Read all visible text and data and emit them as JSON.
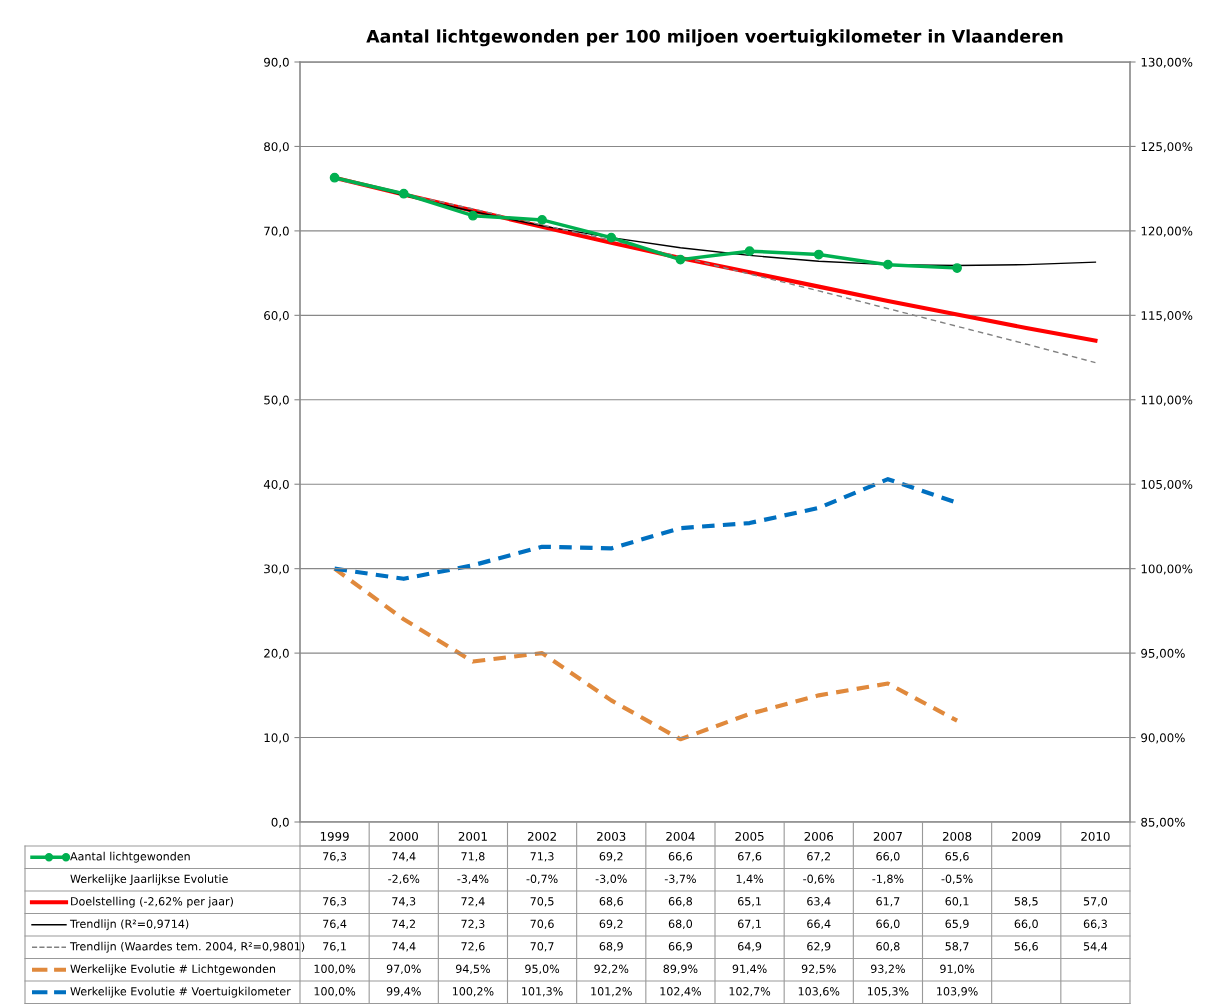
{
  "chart_data": {
    "type": "line",
    "title": "Aantal lichtgewonden per 100 miljoen voertuigkilometer in Vlaanderen",
    "categories": [
      "1999",
      "2000",
      "2001",
      "2002",
      "2003",
      "2004",
      "2005",
      "2006",
      "2007",
      "2008",
      "2009",
      "2010"
    ],
    "series": [
      {
        "name": "Aantal lichtgewonden",
        "color": "#00b050",
        "marker": "circle",
        "line_style": "solid",
        "values": [
          76.3,
          74.4,
          71.8,
          71.3,
          69.2,
          66.6,
          67.6,
          67.2,
          66.0,
          65.6,
          null,
          null
        ],
        "value_labels": [
          "76,3",
          "74,4",
          "71,8",
          "71,3",
          "69,2",
          "66,6",
          "67,6",
          "67,2",
          "66,0",
          "65,6",
          null,
          null
        ]
      },
      {
        "name": "Werkelijke Jaarlijkse Evolutie",
        "values": [
          null,
          null,
          null,
          null,
          null,
          null,
          null,
          null,
          null,
          null,
          null,
          null
        ],
        "value_labels": [
          null,
          "-2,6%",
          "-3,4%",
          "-0,7%",
          "-3,0%",
          "-3,7%",
          "1,4%",
          "-0,6%",
          "-1,8%",
          "-0,5%",
          null,
          null
        ]
      },
      {
        "name": "Doelstelling (-2,62% per jaar)",
        "color": "#ff0000",
        "line_style": "solid",
        "values": [
          76.3,
          74.3,
          72.4,
          70.5,
          68.6,
          66.8,
          65.1,
          63.4,
          61.7,
          60.1,
          58.5,
          57.0
        ],
        "value_labels": [
          "76,3",
          "74,3",
          "72,4",
          "70,5",
          "68,6",
          "66,8",
          "65,1",
          "63,4",
          "61,7",
          "60,1",
          "58,5",
          "57,0"
        ]
      },
      {
        "name": "Trendlijn (R²=0,9714)",
        "color": "#000000",
        "line_style": "solid",
        "values": [
          76.4,
          74.2,
          72.3,
          70.6,
          69.2,
          68.0,
          67.1,
          66.4,
          66.0,
          65.9,
          66.0,
          66.3
        ],
        "value_labels": [
          "76,4",
          "74,2",
          "72,3",
          "70,6",
          "69,2",
          "68,0",
          "67,1",
          "66,4",
          "66,0",
          "65,9",
          "66,0",
          "66,3"
        ]
      },
      {
        "name": "Trendlijn (Waardes tem. 2004, R²=0,9801)",
        "color": "#808080",
        "line_style": "dashed",
        "values": [
          76.1,
          74.4,
          72.6,
          70.7,
          68.9,
          66.9,
          64.9,
          62.9,
          60.8,
          58.7,
          56.6,
          54.4
        ],
        "value_labels": [
          "76,1",
          "74,4",
          "72,6",
          "70,7",
          "68,9",
          "66,9",
          "64,9",
          "62,9",
          "60,8",
          "58,7",
          "56,6",
          "54,4"
        ]
      },
      {
        "name": "Werkelijke Evolutie # Lichtgewonden",
        "color": "#e0893c",
        "line_style": "dashed",
        "axis": "y2",
        "values": [
          100.0,
          97.0,
          94.5,
          95.0,
          92.2,
          89.9,
          91.4,
          92.5,
          93.2,
          91.0,
          null,
          null
        ],
        "value_labels": [
          "100,0%",
          "97,0%",
          "94,5%",
          "95,0%",
          "92,2%",
          "89,9%",
          "91,4%",
          "92,5%",
          "93,2%",
          "91,0%",
          null,
          null
        ]
      },
      {
        "name": "Werkelijke Evolutie # Voertuigkilometer",
        "color": "#0070c0",
        "line_style": "dashed",
        "axis": "y2",
        "values": [
          100.0,
          99.4,
          100.2,
          101.3,
          101.2,
          102.4,
          102.7,
          103.6,
          105.3,
          103.9,
          null,
          null
        ],
        "value_labels": [
          "100,0%",
          "99,4%",
          "100,2%",
          "101,3%",
          "101,2%",
          "102,4%",
          "102,7%",
          "103,6%",
          "105,3%",
          "103,9%",
          null,
          null
        ]
      }
    ],
    "ylim": [
      0,
      90
    ],
    "yticks": [
      {
        "value": 0,
        "label": "0,0"
      },
      {
        "value": 10,
        "label": "10,0"
      },
      {
        "value": 20,
        "label": "20,0"
      },
      {
        "value": 30,
        "label": "30,0"
      },
      {
        "value": 40,
        "label": "40,0"
      },
      {
        "value": 50,
        "label": "50,0"
      },
      {
        "value": 60,
        "label": "60,0"
      },
      {
        "value": 70,
        "label": "70,0"
      },
      {
        "value": 80,
        "label": "80,0"
      },
      {
        "value": 90,
        "label": "90,0"
      }
    ],
    "y2lim": [
      85,
      130
    ],
    "y2ticks": [
      {
        "value": 85,
        "label": "85,00%"
      },
      {
        "value": 90,
        "label": "90,00%"
      },
      {
        "value": 95,
        "label": "95,00%"
      },
      {
        "value": 100,
        "label": "100,00%"
      },
      {
        "value": 105,
        "label": "105,00%"
      },
      {
        "value": 110,
        "label": "110,00%"
      },
      {
        "value": 115,
        "label": "115,00%"
      },
      {
        "value": 120,
        "label": "120,00%"
      },
      {
        "value": 125,
        "label": "125,00%"
      },
      {
        "value": 130,
        "label": "130,00%"
      }
    ],
    "grid": "y",
    "legend": "bottom"
  }
}
